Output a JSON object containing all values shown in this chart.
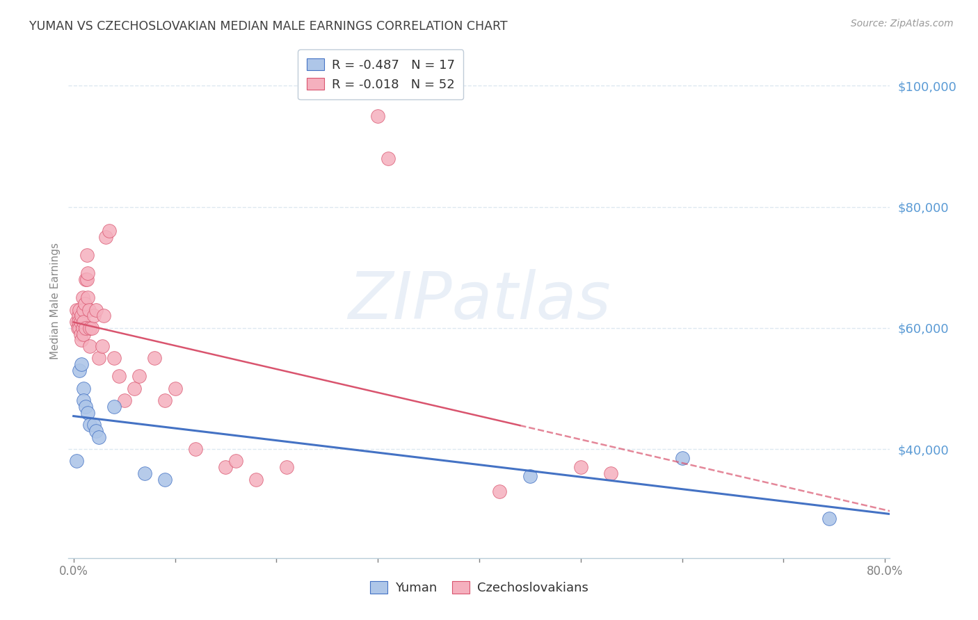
{
  "title": "YUMAN VS CZECHOSLOVAKIAN MEDIAN MALE EARNINGS CORRELATION CHART",
  "source": "Source: ZipAtlas.com",
  "ylabel": "Median Male Earnings",
  "watermark": "ZIPatlas",
  "ymin": 22000,
  "ymax": 107000,
  "xmin": -0.005,
  "xmax": 0.805,
  "yticks": [
    40000,
    60000,
    80000,
    100000
  ],
  "ytick_labels": [
    "$40,000",
    "$60,000",
    "$80,000",
    "$100,000"
  ],
  "xticks": [
    0.0,
    0.1,
    0.2,
    0.3,
    0.4,
    0.5,
    0.6,
    0.7,
    0.8
  ],
  "xtick_labels": [
    "0.0%",
    "",
    "",
    "",
    "",
    "",
    "",
    "",
    "80.0%"
  ],
  "yuman_color": "#aec6e8",
  "czech_color": "#f5b0be",
  "yuman_line_color": "#4472c4",
  "czech_line_color": "#d9546e",
  "legend_yuman_r": "-0.487",
  "legend_yuman_n": "17",
  "legend_czech_r": "-0.018",
  "legend_czech_n": "52",
  "background_color": "#ffffff",
  "grid_color": "#dde8f0",
  "axis_color": "#b8ccd8",
  "title_color": "#404040",
  "right_label_color": "#5b9bd5",
  "source_color": "#999999",
  "yuman_x": [
    0.003,
    0.006,
    0.008,
    0.01,
    0.01,
    0.012,
    0.014,
    0.016,
    0.02,
    0.022,
    0.025,
    0.04,
    0.07,
    0.09,
    0.45,
    0.6,
    0.745
  ],
  "yuman_y": [
    38000,
    53000,
    54000,
    50000,
    48000,
    47000,
    46000,
    44000,
    44000,
    43000,
    42000,
    47000,
    36000,
    35000,
    35500,
    38500,
    28500
  ],
  "czech_x": [
    0.003,
    0.003,
    0.004,
    0.005,
    0.005,
    0.006,
    0.006,
    0.007,
    0.007,
    0.008,
    0.008,
    0.009,
    0.009,
    0.01,
    0.01,
    0.01,
    0.011,
    0.012,
    0.012,
    0.013,
    0.013,
    0.014,
    0.014,
    0.015,
    0.016,
    0.016,
    0.018,
    0.02,
    0.022,
    0.025,
    0.028,
    0.03,
    0.032,
    0.035,
    0.04,
    0.045,
    0.05,
    0.06,
    0.065,
    0.08,
    0.09,
    0.1,
    0.12,
    0.15,
    0.16,
    0.18,
    0.21,
    0.3,
    0.31,
    0.42,
    0.5,
    0.53
  ],
  "czech_y": [
    63000,
    61000,
    60000,
    62000,
    61000,
    63000,
    60000,
    59000,
    61000,
    62000,
    58000,
    60000,
    65000,
    63000,
    59000,
    61000,
    64000,
    68000,
    60000,
    72000,
    68000,
    65000,
    69000,
    63000,
    60000,
    57000,
    60000,
    62000,
    63000,
    55000,
    57000,
    62000,
    75000,
    76000,
    55000,
    52000,
    48000,
    50000,
    52000,
    55000,
    48000,
    50000,
    40000,
    37000,
    38000,
    35000,
    37000,
    95000,
    88000,
    33000,
    37000,
    36000
  ]
}
